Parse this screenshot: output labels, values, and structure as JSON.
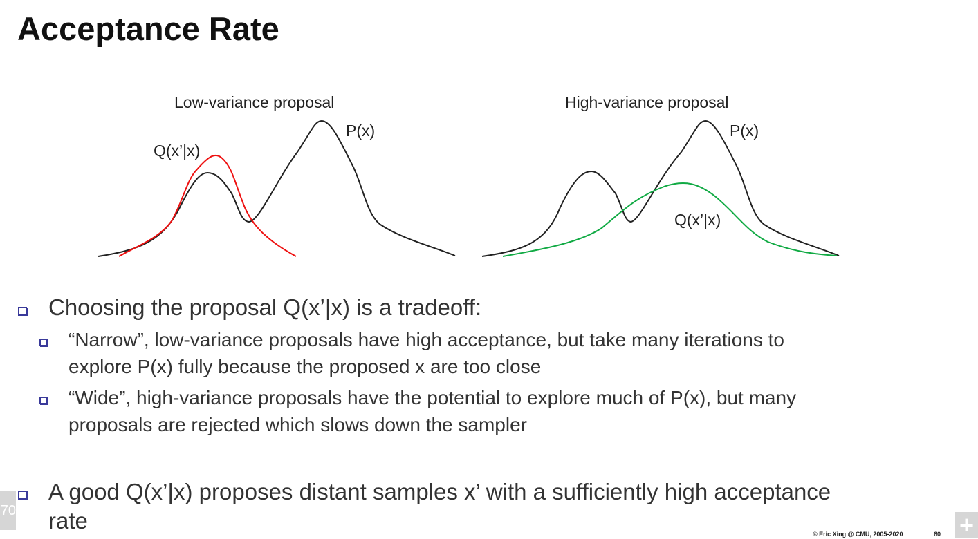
{
  "title": "Acceptance Rate",
  "figure": {
    "left": {
      "title": "Low-variance proposal",
      "p_label": "P(x)",
      "q_label": "Q(x’|x)"
    },
    "right": {
      "title": "High-variance proposal",
      "p_label": "P(x)",
      "q_label": "Q(x’|x)"
    },
    "colors": {
      "p": "#222222",
      "q_low": "#ee1111",
      "q_high": "#11aa44",
      "underline": "#b070f0"
    }
  },
  "bullets": [
    {
      "text": "Choosing the proposal Q(x’|x) is a tradeoff:",
      "sub": [
        {
          "line1_parts": [
            "“Narrow”, ",
            "low-variance",
            " proposals have ",
            "high acceptance,",
            " but take ",
            "many iterations",
            " to"
          ],
          "line2": "explore P(x) fully because the proposed x are too close"
        },
        {
          "line1": "“Wide”, high-variance proposals have the potential to explore much of P(x), but many",
          "line2": "proposals are rejected which slows down the sampler"
        }
      ]
    },
    {
      "line1": "A good Q(x’|x) proposes distant samples x’ with a sufficiently high acceptance",
      "line2": "rate"
    }
  ],
  "footer": {
    "copyright": "© Eric Xing @ CMU, 2005-2020",
    "page": "60",
    "slide_counter": "70",
    "plus": "+"
  }
}
